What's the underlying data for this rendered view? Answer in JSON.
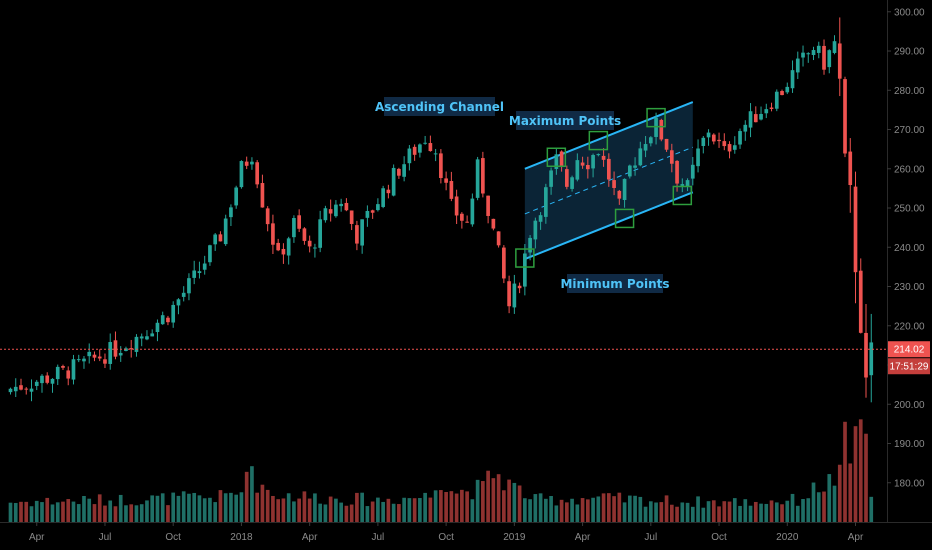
{
  "chart_data": {
    "type": "candlestick",
    "y_axis": {
      "ticks": [
        "180.00",
        "190.00",
        "200.00",
        "210.00",
        "220.00",
        "230.00",
        "240.00",
        "250.00",
        "260.00",
        "270.00",
        "280.00",
        "290.00",
        "300.00"
      ],
      "tick_values": [
        180,
        190,
        200,
        210,
        220,
        230,
        240,
        250,
        260,
        270,
        280,
        290,
        300
      ],
      "range": [
        170,
        303
      ]
    },
    "x_axis": {
      "ticks": [
        "Apr",
        "Jul",
        "Oct",
        "2018",
        "Apr",
        "Jul",
        "Oct",
        "2019",
        "Apr",
        "Jul",
        "Oct",
        "2020",
        "Apr"
      ],
      "tick_weeks": [
        5,
        18,
        31,
        44,
        57,
        70,
        83,
        96,
        109,
        122,
        135,
        148,
        161
      ],
      "range_weeks": [
        -2,
        167
      ]
    },
    "last_price": {
      "label": "214.02",
      "value": 214.02
    },
    "countdown": {
      "label": "17:51:29"
    },
    "annotations": {
      "ascending_channel": "Ascending Channel",
      "maximum_points": "Maximum Points",
      "minimum_points": "Minimum Points"
    },
    "channel": {
      "upper": {
        "start_week": 98,
        "start_value": 260,
        "end_week": 130,
        "end_value": 277
      },
      "lower": {
        "start_week": 98,
        "start_value": 237,
        "end_week": 130,
        "end_value": 254
      }
    },
    "maximum_point_weeks": [
      104,
      112,
      123
    ],
    "minimum_point_weeks": [
      98,
      117,
      128
    ],
    "colors": {
      "up": "#26a69a",
      "down": "#ef5350",
      "volume_up": "#1f6f66",
      "volume_down": "#8f3230",
      "channel_line": "#29b6f6",
      "channel_fill": "#0d2a3f",
      "box": "#2e9e3e",
      "price_line": "#ef5350",
      "label_bg": "#102a45",
      "axis_text": "#8a8a8a"
    },
    "anchors": [
      [
        0,
        204
      ],
      [
        5,
        206
      ],
      [
        10,
        208
      ],
      [
        15,
        211
      ],
      [
        20,
        214
      ],
      [
        25,
        218
      ],
      [
        30,
        223
      ],
      [
        35,
        232
      ],
      [
        40,
        243
      ],
      [
        44,
        260
      ],
      [
        46,
        264
      ],
      [
        48,
        252
      ],
      [
        51,
        237
      ],
      [
        54,
        246
      ],
      [
        57,
        239
      ],
      [
        60,
        248
      ],
      [
        63,
        252
      ],
      [
        66,
        243
      ],
      [
        70,
        252
      ],
      [
        74,
        260
      ],
      [
        79,
        268
      ],
      [
        81,
        265
      ],
      [
        84,
        250
      ],
      [
        87,
        246
      ],
      [
        89,
        260
      ],
      [
        91,
        250
      ],
      [
        93,
        238
      ],
      [
        95,
        225
      ],
      [
        97,
        232
      ],
      [
        99,
        244
      ],
      [
        102,
        254
      ],
      [
        104,
        262
      ],
      [
        106,
        256
      ],
      [
        108,
        263
      ],
      [
        110,
        262
      ],
      [
        112,
        265
      ],
      [
        114,
        258
      ],
      [
        116,
        250
      ],
      [
        118,
        260
      ],
      [
        121,
        268
      ],
      [
        123,
        271
      ],
      [
        125,
        266
      ],
      [
        127,
        258
      ],
      [
        129,
        255
      ],
      [
        131,
        264
      ],
      [
        133,
        270
      ],
      [
        136,
        264
      ],
      [
        139,
        270
      ],
      [
        143,
        275
      ],
      [
        147,
        280
      ],
      [
        150,
        286
      ],
      [
        153,
        291
      ],
      [
        155,
        287
      ],
      [
        157,
        292
      ],
      [
        158,
        282
      ],
      [
        159,
        262
      ],
      [
        160,
        254
      ],
      [
        161,
        235
      ],
      [
        162,
        220
      ],
      [
        163,
        205
      ],
      [
        164,
        214
      ]
    ],
    "volume_anchors": [
      [
        0,
        20
      ],
      [
        20,
        22
      ],
      [
        40,
        25
      ],
      [
        44,
        30
      ],
      [
        45,
        70
      ],
      [
        46,
        45
      ],
      [
        50,
        28
      ],
      [
        60,
        24
      ],
      [
        70,
        22
      ],
      [
        80,
        26
      ],
      [
        82,
        45
      ],
      [
        85,
        30
      ],
      [
        90,
        34
      ],
      [
        92,
        50
      ],
      [
        95,
        38
      ],
      [
        100,
        22
      ],
      [
        110,
        24
      ],
      [
        120,
        22
      ],
      [
        130,
        20
      ],
      [
        140,
        20
      ],
      [
        150,
        22
      ],
      [
        154,
        35
      ],
      [
        156,
        40
      ],
      [
        158,
        45
      ],
      [
        159,
        80
      ],
      [
        160,
        60
      ],
      [
        161,
        90
      ],
      [
        162,
        120
      ],
      [
        163,
        70
      ],
      [
        164,
        30
      ]
    ]
  }
}
